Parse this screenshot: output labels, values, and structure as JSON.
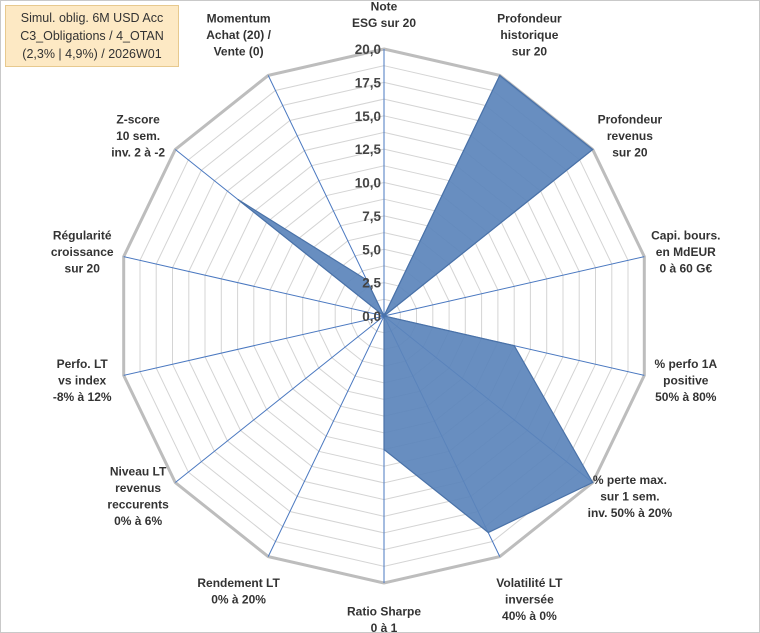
{
  "title_lines": [
    "Simul. oblig. 6M USD Acc",
    "C3_Obligations / 4_OTAN",
    "(2,3% | 4,9%) / 2026W01"
  ],
  "chart_data": {
    "type": "radar",
    "axes": [
      [
        "Note",
        "ESG sur 20"
      ],
      [
        "Profondeur",
        "historique",
        "sur 20"
      ],
      [
        "Profondeur",
        "revenus",
        "sur 20"
      ],
      [
        "Capi. bours.",
        "en MdEUR",
        "0 à 60 G€"
      ],
      [
        "% perfo 1A",
        "positive",
        "50% à 80%"
      ],
      [
        "% perte max.",
        "sur 1 sem.",
        "inv. 50% à 20%"
      ],
      [
        "Volatilité LT",
        "inversée",
        "40% à 0%"
      ],
      [
        "Ratio Sharpe",
        "0 à 1"
      ],
      [
        "Rendement LT",
        "0% à 20%"
      ],
      [
        "Niveau LT",
        "revenus",
        "reccurents",
        "0% à 6%"
      ],
      [
        "Perfo. LT",
        "vs index",
        "-8% à 12%"
      ],
      [
        "Régularité",
        "croissance",
        "sur 20"
      ],
      [
        "Z-score",
        "10 sem.",
        "inv. 2 à -2"
      ],
      [
        "Momentum",
        "Achat (20) /",
        "Vente (0)"
      ]
    ],
    "values": [
      0,
      20,
      20,
      0,
      10,
      20,
      18,
      10,
      0,
      0,
      0,
      0,
      14,
      3
    ],
    "rmin": 0,
    "rmax": 20,
    "ticks": [
      "0,0",
      "2,5",
      "5,0",
      "7,5",
      "10,0",
      "12,5",
      "15,0",
      "17,5",
      "20,0"
    ],
    "fill_color": "#5b84bb",
    "stroke_color": "#4a72a8",
    "grid_color": "#d4d4d4",
    "outer_color": "#bdbdbd",
    "spoke_color": "#4a78c0"
  }
}
